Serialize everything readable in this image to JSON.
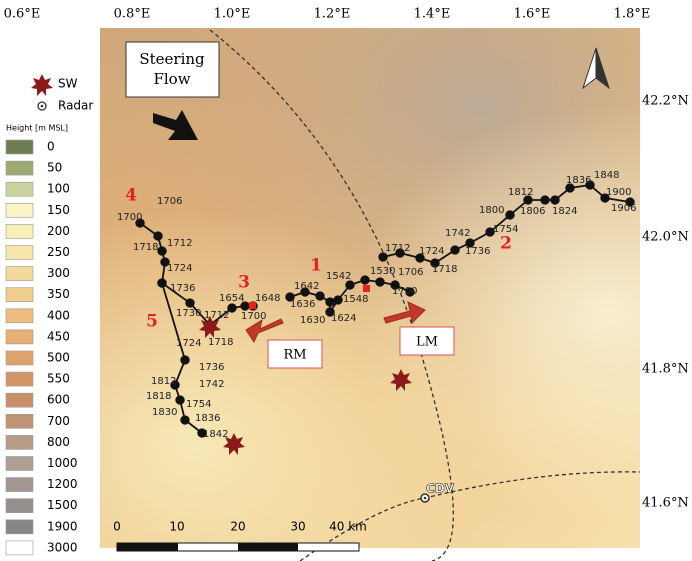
{
  "axes": {
    "lon_labels": [
      "0.6°E",
      "0.8°E",
      "1.0°E",
      "1.2°E",
      "1.4°E",
      "1.6°E",
      "1.8°E"
    ],
    "lat_labels": [
      "42.2°N",
      "42.0°N",
      "41.8°N",
      "41.6°N"
    ]
  },
  "legend": {
    "items": [
      {
        "label": "SW"
      },
      {
        "label": "Radar"
      }
    ],
    "height_title": "Height [m MSL]",
    "height_classes": [
      {
        "label": "0",
        "color": "#6f7d52"
      },
      {
        "label": "50",
        "color": "#9dab72"
      },
      {
        "label": "100",
        "color": "#cbd3a0"
      },
      {
        "label": "150",
        "color": "#f8f4c6"
      },
      {
        "label": "200",
        "color": "#f8f0b8"
      },
      {
        "label": "250",
        "color": "#f6e6aa"
      },
      {
        "label": "300",
        "color": "#f3da9c"
      },
      {
        "label": "350",
        "color": "#f0cd8c"
      },
      {
        "label": "400",
        "color": "#edbe7d"
      },
      {
        "label": "450",
        "color": "#e8b073"
      },
      {
        "label": "500",
        "color": "#e0a26c"
      },
      {
        "label": "550",
        "color": "#d49668"
      },
      {
        "label": "600",
        "color": "#c8916c"
      },
      {
        "label": "700",
        "color": "#be9478"
      },
      {
        "label": "800",
        "color": "#b89c89"
      },
      {
        "label": "1000",
        "color": "#b09d93"
      },
      {
        "label": "1200",
        "color": "#a39693"
      },
      {
        "label": "1500",
        "color": "#948f8d"
      },
      {
        "label": "1900",
        "color": "#878787"
      },
      {
        "label": "3000",
        "color": "#ffffff"
      }
    ]
  },
  "annotations": {
    "steering_flow": [
      "Steering",
      "Flow"
    ],
    "rm": "RM",
    "lm": "LM",
    "radar_site": "CDV"
  },
  "track_numbers": [
    "1",
    "2",
    "3",
    "4",
    "5"
  ],
  "time_labels": [
    "1700",
    "1706",
    "1718",
    "1712",
    "1724",
    "1736",
    "1730",
    "1712",
    "1724",
    "1718",
    "1736",
    "1812",
    "1742",
    "1818",
    "1754",
    "1830",
    "1836",
    "1842",
    "1654",
    "1648",
    "1700",
    "1642",
    "1636",
    "1630",
    "1624",
    "1542",
    "1548",
    "1530",
    "1706",
    "1700",
    "1712",
    "1724",
    "1718",
    "1736",
    "1742",
    "1754",
    "1800",
    "1812",
    "1806",
    "1824",
    "1836",
    "1848",
    "1900",
    "1906"
  ],
  "scale_bar": {
    "labels": [
      "0",
      "10",
      "20",
      "30",
      "40 km"
    ]
  }
}
